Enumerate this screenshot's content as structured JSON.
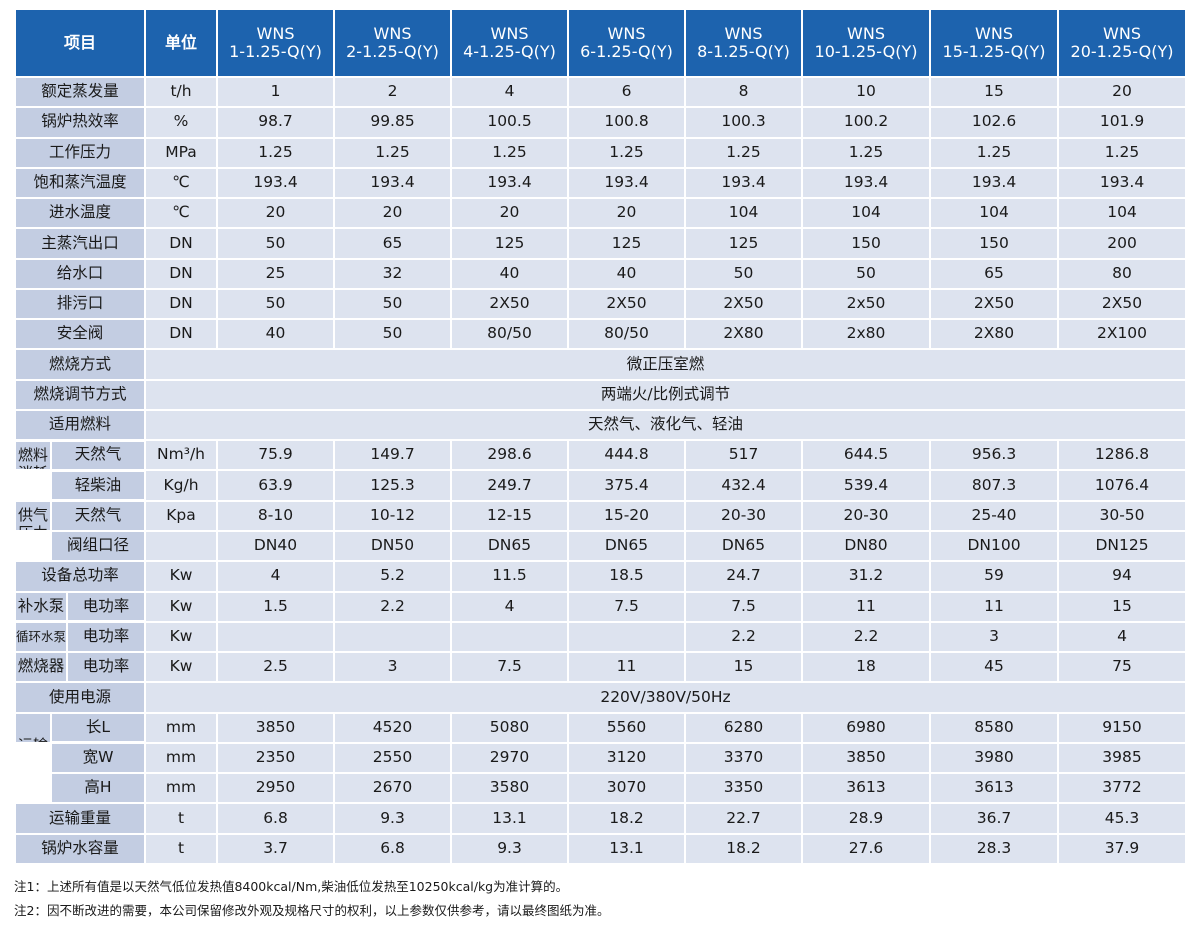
{
  "header": {
    "item": "项目",
    "unit": "单位",
    "models": [
      {
        "line1": "WNS",
        "line2": "1-1.25-Q(Y)"
      },
      {
        "line1": "WNS",
        "line2": "2-1.25-Q(Y)"
      },
      {
        "line1": "WNS",
        "line2": "4-1.25-Q(Y)"
      },
      {
        "line1": "WNS",
        "line2": "6-1.25-Q(Y)"
      },
      {
        "line1": "WNS",
        "line2": "8-1.25-Q(Y)"
      },
      {
        "line1": "WNS",
        "line2": "10-1.25-Q(Y)"
      },
      {
        "line1": "WNS",
        "line2": "15-1.25-Q(Y)"
      },
      {
        "line1": "WNS",
        "line2": "20-1.25-Q(Y)"
      }
    ]
  },
  "rows": {
    "rated_steam": {
      "label": "额定蒸发量",
      "unit": "t/h",
      "values": [
        "1",
        "2",
        "4",
        "6",
        "8",
        "10",
        "15",
        "20"
      ]
    },
    "efficiency": {
      "label": "锅炉热效率",
      "unit": "%",
      "values": [
        "98.7",
        "99.85",
        "100.5",
        "100.8",
        "100.3",
        "100.2",
        "102.6",
        "101.9"
      ]
    },
    "pressure": {
      "label": "工作压力",
      "unit": "MPa",
      "values": [
        "1.25",
        "1.25",
        "1.25",
        "1.25",
        "1.25",
        "1.25",
        "1.25",
        "1.25"
      ]
    },
    "sat_temp": {
      "label": "饱和蒸汽温度",
      "unit": "℃",
      "values": [
        "193.4",
        "193.4",
        "193.4",
        "193.4",
        "193.4",
        "193.4",
        "193.4",
        "193.4"
      ]
    },
    "feed_temp": {
      "label": "进水温度",
      "unit": "℃",
      "values": [
        "20",
        "20",
        "20",
        "20",
        "104",
        "104",
        "104",
        "104"
      ]
    },
    "steam_outlet": {
      "label": "主蒸汽出口",
      "unit": "DN",
      "values": [
        "50",
        "65",
        "125",
        "125",
        "125",
        "150",
        "150",
        "200"
      ]
    },
    "water_inlet": {
      "label": "给水口",
      "unit": "DN",
      "values": [
        "25",
        "32",
        "40",
        "40",
        "50",
        "50",
        "65",
        "80"
      ]
    },
    "blowdown": {
      "label": "排污口",
      "unit": "DN",
      "values": [
        "50",
        "50",
        "2X50",
        "2X50",
        "2X50",
        "2x50",
        "2X50",
        "2X50"
      ]
    },
    "safety_valve": {
      "label": "安全阀",
      "unit": "DN",
      "values": [
        "40",
        "50",
        "80/50",
        "80/50",
        "2X80",
        "2x80",
        "2X80",
        "2X100"
      ]
    },
    "combustion_mode": {
      "label": "燃烧方式",
      "value": "微正压室燃"
    },
    "regulation_mode": {
      "label": "燃烧调节方式",
      "value": "两端火/比例式调节"
    },
    "fuel": {
      "label": "适用燃料",
      "value": "天然气、液化气、轻油"
    },
    "fuel_consumption": {
      "group_label": "燃料消耗",
      "natural_gas": {
        "label": "天然气",
        "unit": "Nm³/h",
        "values": [
          "75.9",
          "149.7",
          "298.6",
          "444.8",
          "517",
          "644.5",
          "956.3",
          "1286.8"
        ]
      },
      "light_oil": {
        "label": "轻柴油",
        "unit": "Kg/h",
        "values": [
          "63.9",
          "125.3",
          "249.7",
          "375.4",
          "432.4",
          "539.4",
          "807.3",
          "1076.4"
        ]
      }
    },
    "gas_supply": {
      "group_label": "供气压力",
      "natural_gas": {
        "label": "天然气",
        "unit": "Kpa",
        "values": [
          "8-10",
          "10-12",
          "12-15",
          "15-20",
          "20-30",
          "20-30",
          "25-40",
          "30-50"
        ]
      },
      "valve_size": {
        "label": "阀组口径",
        "unit": "",
        "values": [
          "DN40",
          "DN50",
          "DN65",
          "DN65",
          "DN65",
          "DN80",
          "DN100",
          "DN125"
        ]
      }
    },
    "total_power": {
      "label": "设备总功率",
      "unit": "Kw",
      "values": [
        "4",
        "5.2",
        "11.5",
        "18.5",
        "24.7",
        "31.2",
        "59",
        "94"
      ]
    },
    "feed_pump": {
      "label": "补水泵",
      "sub": "电功率",
      "unit": "Kw",
      "values": [
        "1.5",
        "2.2",
        "4",
        "7.5",
        "7.5",
        "11",
        "11",
        "15"
      ]
    },
    "circ_pump": {
      "label": "循环水泵",
      "sub": "电功率",
      "unit": "Kw",
      "values": [
        "",
        "",
        "",
        "",
        "2.2",
        "2.2",
        "3",
        "4"
      ]
    },
    "burner": {
      "label": "燃烧器",
      "sub": "电功率",
      "unit": "Kw",
      "values": [
        "2.5",
        "3",
        "7.5",
        "11",
        "15",
        "18",
        "45",
        "75"
      ]
    },
    "power_supply": {
      "label": "使用电源",
      "value": "220V/380V/50Hz"
    },
    "transport_size": {
      "group_label": "运输尺寸",
      "length": {
        "label": "长L",
        "unit": "mm",
        "values": [
          "3850",
          "4520",
          "5080",
          "5560",
          "6280",
          "6980",
          "8580",
          "9150"
        ]
      },
      "width": {
        "label": "宽W",
        "unit": "mm",
        "values": [
          "2350",
          "2550",
          "2970",
          "3120",
          "3370",
          "3850",
          "3980",
          "3985"
        ]
      },
      "height": {
        "label": "高H",
        "unit": "mm",
        "values": [
          "2950",
          "2670",
          "3580",
          "3070",
          "3350",
          "3613",
          "3613",
          "3772"
        ]
      }
    },
    "transport_weight": {
      "label": "运输重量",
      "unit": "t",
      "values": [
        "6.8",
        "9.3",
        "13.1",
        "18.2",
        "22.7",
        "28.9",
        "36.7",
        "45.3"
      ]
    },
    "water_volume": {
      "label": "锅炉水容量",
      "unit": "t",
      "values": [
        "3.7",
        "6.8",
        "9.3",
        "13.1",
        "18.2",
        "27.6",
        "28.3",
        "37.9"
      ]
    }
  },
  "notes": [
    "注1：上述所有值是以天然气低位发热值8400kcal/Nm,柴油低位发热至10250kcal/kg为准计算的。",
    "注2：因不断改进的需要，本公司保留修改外观及规格尺寸的权利，以上参数仅供参考，请以最终图纸为准。"
  ]
}
